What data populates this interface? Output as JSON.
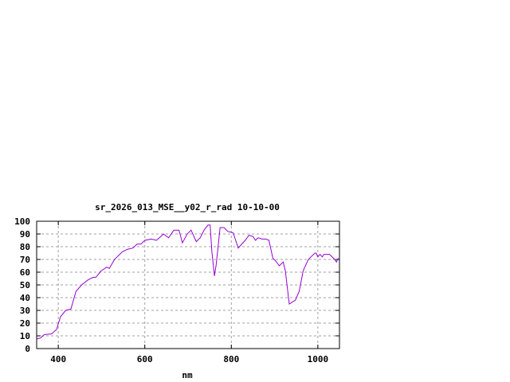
{
  "chart_data": {
    "type": "line",
    "title": "sr_2026_013_MSE__y02_r_rad 10-10-00",
    "xlabel": "nm",
    "ylabel": "",
    "xlim": [
      350,
      1050
    ],
    "ylim": [
      0,
      100
    ],
    "xticks": [
      400,
      600,
      800,
      1000
    ],
    "yticks": [
      0,
      10,
      20,
      30,
      40,
      50,
      60,
      70,
      80,
      90,
      100
    ],
    "grid": true,
    "line_color": "#9400d3",
    "series": [
      {
        "x": [
          350,
          359,
          368,
          384,
          396,
          405,
          417,
          429,
          441,
          454,
          469,
          481,
          487,
          499,
          512,
          518,
          530,
          548,
          560,
          573,
          582,
          591,
          600,
          615,
          627,
          643,
          655,
          667,
          679,
          687,
          698,
          707,
          719,
          728,
          737,
          746,
          751,
          755,
          761,
          765,
          774,
          783,
          792,
          804,
          816,
          832,
          841,
          850,
          856,
          862,
          871,
          880,
          887,
          896,
          902,
          911,
          920,
          925,
          934,
          948,
          957,
          966,
          978,
          993,
          996,
          1000,
          1005,
          1010,
          1014,
          1027,
          1039,
          1043,
          1047
        ],
        "y": [
          7.5,
          8.3,
          11,
          11.5,
          15,
          25,
          30,
          31,
          45,
          50,
          54,
          56,
          56,
          61,
          64,
          63,
          70,
          76,
          78,
          79,
          82,
          82,
          85,
          86,
          85,
          90,
          87,
          93,
          93,
          83,
          90,
          93,
          84,
          87,
          93,
          97,
          97,
          76,
          57,
          66,
          95,
          95,
          92,
          91,
          79,
          85,
          89,
          88,
          85,
          87,
          86,
          86,
          85,
          71,
          69,
          65,
          68,
          61,
          35,
          38,
          45,
          61,
          70,
          75,
          75,
          72,
          74,
          72,
          74,
          74,
          70,
          68,
          71
        ]
      }
    ]
  }
}
